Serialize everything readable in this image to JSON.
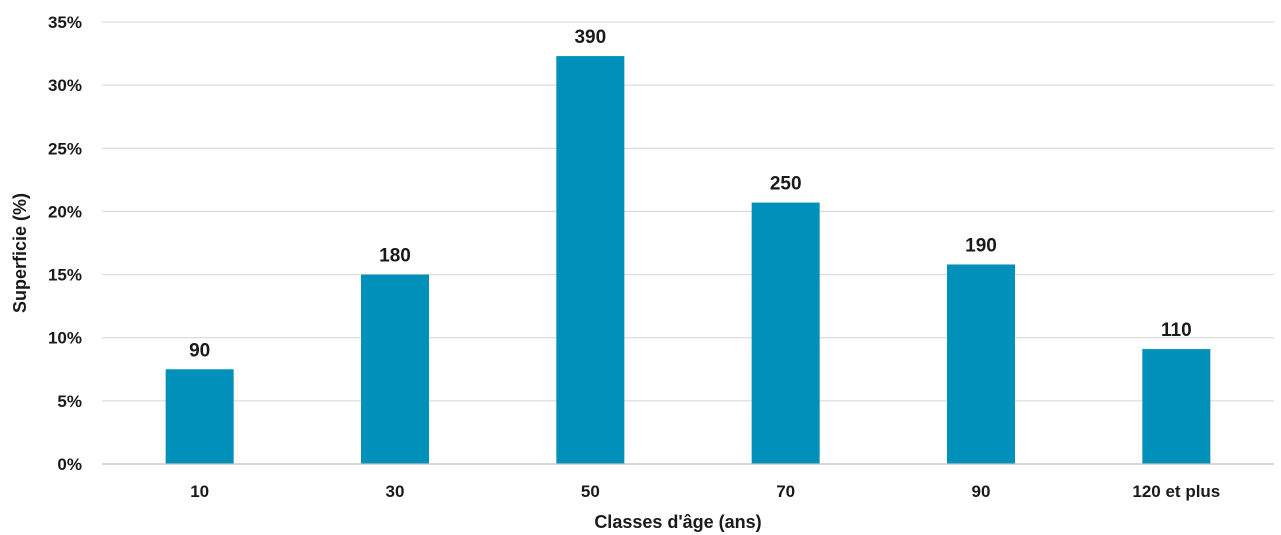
{
  "chart_data": {
    "type": "bar",
    "title": "",
    "xlabel": "Classes d'âge (ans)",
    "ylabel": "Superficie (%)",
    "categories": [
      "10",
      "30",
      "50",
      "70",
      "90",
      "120 et plus"
    ],
    "values": [
      7.5,
      15.0,
      32.3,
      20.7,
      15.8,
      9.1
    ],
    "data_labels": [
      "90",
      "180",
      "390",
      "250",
      "190",
      "110"
    ],
    "ylim": [
      0,
      35
    ],
    "yticks": [
      0,
      5,
      10,
      15,
      20,
      25,
      30,
      35
    ],
    "ytick_labels": [
      "0%",
      "5%",
      "10%",
      "15%",
      "20%",
      "25%",
      "30%",
      "35%"
    ],
    "grid": true,
    "legend": "none",
    "bar_color": "#0090BA"
  }
}
